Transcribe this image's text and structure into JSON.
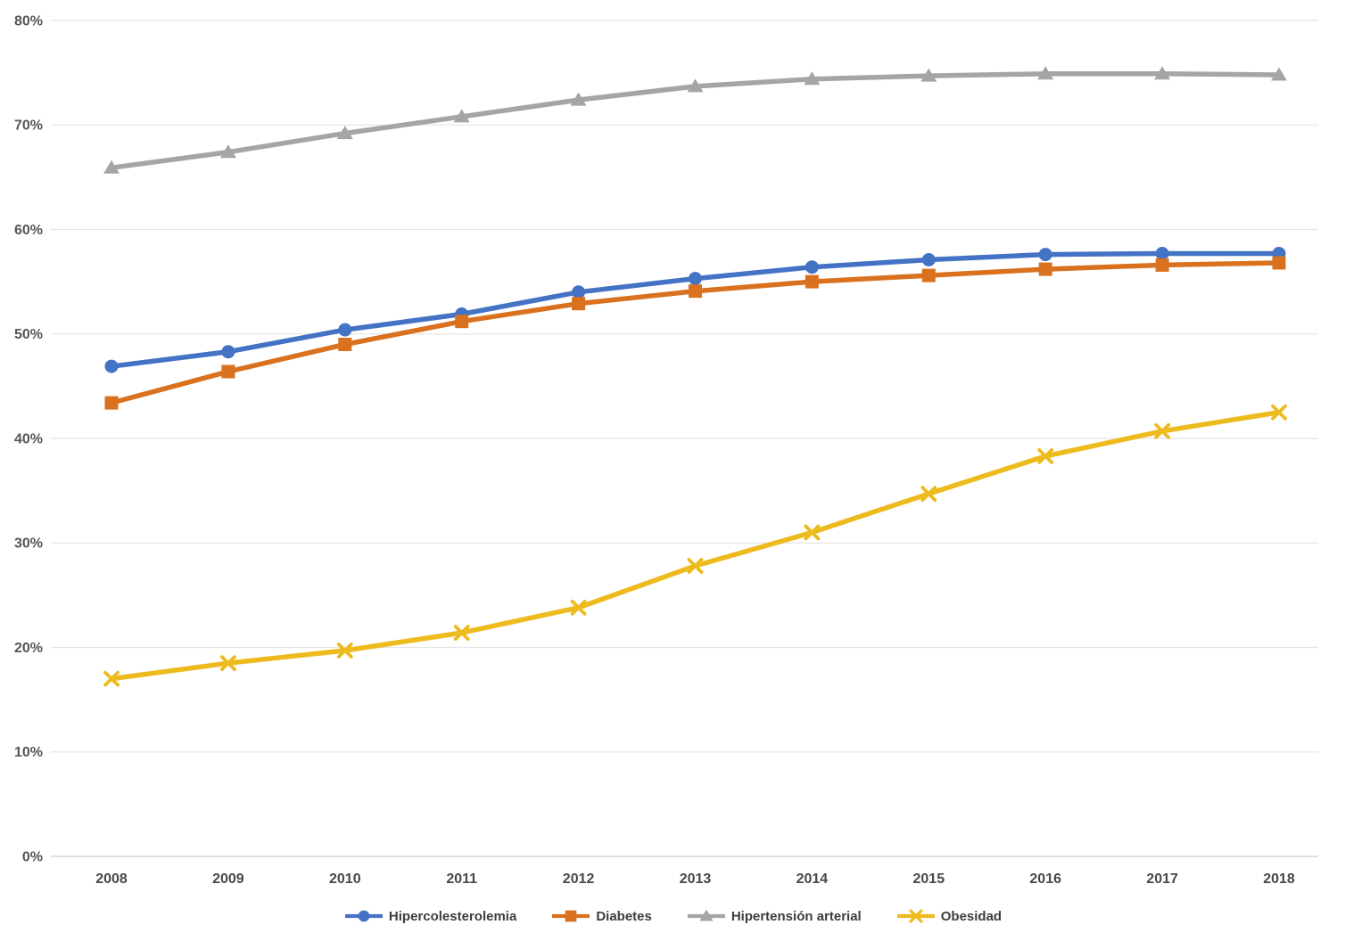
{
  "chart_data": {
    "type": "line",
    "title": "",
    "x_categories": [
      "2008",
      "2009",
      "2010",
      "2011",
      "2012",
      "2013",
      "2014",
      "2015",
      "2016",
      "2017",
      "2018"
    ],
    "y_axis": {
      "min": 0,
      "max": 80,
      "step": 10,
      "tick_suffix": "%",
      "tick_labels": [
        "0%",
        "10%",
        "20%",
        "30%",
        "40%",
        "50%",
        "60%",
        "70%",
        "80%"
      ]
    },
    "grid": true,
    "legend_position": "bottom",
    "series": [
      {
        "name": "Hipercolesterolemia",
        "color": "#4472C4",
        "marker": "circle",
        "values": [
          46.9,
          48.3,
          50.4,
          51.9,
          54.0,
          55.3,
          56.4,
          57.1,
          57.6,
          57.7,
          57.7
        ]
      },
      {
        "name": "Diabetes",
        "color": "#D9711E",
        "marker": "square",
        "values": [
          43.4,
          46.4,
          49.0,
          51.2,
          52.9,
          54.1,
          55.0,
          55.6,
          56.2,
          56.6,
          56.8
        ]
      },
      {
        "name": "Hipertensión arterial",
        "color": "#A5A5A5",
        "marker": "triangle",
        "values": [
          65.9,
          67.4,
          69.2,
          70.8,
          72.4,
          73.7,
          74.4,
          74.7,
          74.9,
          74.9,
          74.8
        ]
      },
      {
        "name": "Obesidad",
        "color": "#EDBB1E",
        "marker": "x",
        "values": [
          17.0,
          18.5,
          19.7,
          21.4,
          23.8,
          27.8,
          31.0,
          34.7,
          38.3,
          40.7,
          42.5
        ]
      }
    ]
  },
  "colors": {
    "grid": "#E4E4E4",
    "axis_line": "#CFCFCF",
    "tick_text": "#565656",
    "legend_text": "#3D3D3D",
    "background": "#FFFFFF"
  }
}
